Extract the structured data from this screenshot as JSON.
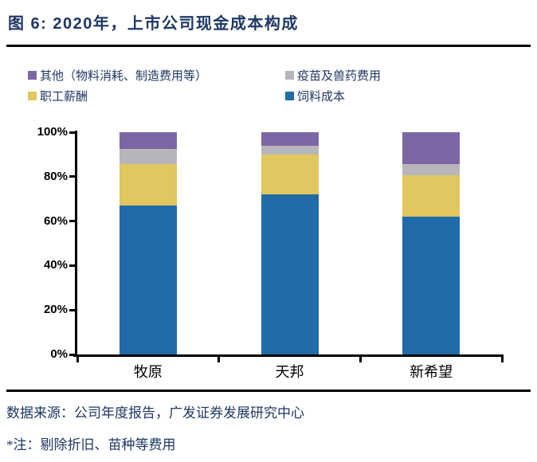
{
  "title": "图 6: 2020年，上市公司现金成本构成",
  "legend": {
    "items": [
      {
        "label": "其他（物料消耗、制造费用等）",
        "color": "#7D66A5"
      },
      {
        "label": "疫苗及兽药费用",
        "color": "#B7B5BA"
      },
      {
        "label": "职工薪酬",
        "color": "#E2C65F"
      },
      {
        "label": "饲料成本",
        "color": "#1F6CA8"
      }
    ]
  },
  "chart_data": {
    "type": "bar",
    "subtype": "stacked-100-percent",
    "title": "2020年，上市公司现金成本构成",
    "categories": [
      "牧原",
      "天邦",
      "新希望"
    ],
    "series": [
      {
        "name": "饲料成本",
        "color": "#1F6CA8",
        "values": [
          67,
          72,
          62
        ]
      },
      {
        "name": "职工薪酬",
        "color": "#E2C65F",
        "values": [
          18.5,
          18,
          18.5
        ]
      },
      {
        "name": "疫苗及兽药费用",
        "color": "#B7B5BA",
        "values": [
          7,
          4,
          5
        ]
      },
      {
        "name": "其他（物料消耗、制造费用等）",
        "color": "#7D66A5",
        "values": [
          7.5,
          6,
          14.5
        ]
      }
    ],
    "stack_order_bottom_to_top": [
      "饲料成本",
      "职工薪酬",
      "疫苗及兽药费用",
      "其他（物料消耗、制造费用等）"
    ],
    "y_ticks": [
      "0%",
      "20%",
      "40%",
      "60%",
      "80%",
      "100%"
    ],
    "ylim": [
      0,
      100
    ],
    "grid": false,
    "legend_position": "top-left"
  },
  "footer": {
    "source": "数据来源：公司年度报告，广发证券发展研究中心",
    "note": "*注：剔除折旧、苗种等费用"
  },
  "colors": {
    "title_text": "#1F3864",
    "legend_text": "#1F3864",
    "footer_text": "#1F3864",
    "axis": "#000000"
  }
}
